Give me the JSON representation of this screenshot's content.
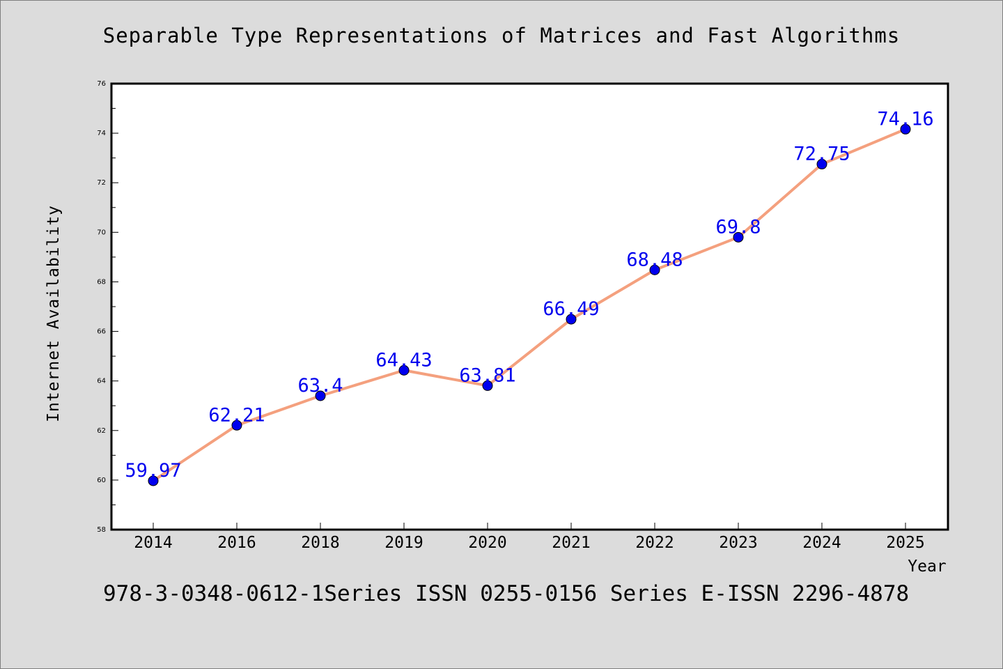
{
  "chart_data": {
    "type": "line",
    "title": "Separable Type Representations of Matrices and Fast Algorithms",
    "xlabel": "Year",
    "ylabel": "Internet Availability",
    "categories": [
      "2014",
      "2016",
      "2018",
      "2019",
      "2020",
      "2021",
      "2022",
      "2023",
      "2024",
      "2025"
    ],
    "series": [
      {
        "values": [
          59.97,
          62.21,
          63.4,
          64.43,
          63.81,
          66.49,
          68.48,
          69.8,
          72.75,
          74.16
        ],
        "data_labels": [
          "59.97",
          "62.21",
          "63.4",
          "64.43",
          "63.81",
          "66.49",
          "68.48",
          "69.8",
          "72.75",
          "74.16"
        ]
      }
    ],
    "ylim": [
      58,
      76
    ],
    "yticks": [
      "58",
      "60",
      "62",
      "64",
      "66",
      "68",
      "70",
      "72",
      "74",
      "76"
    ],
    "grid": false,
    "line_color": "#f4a07e",
    "marker_color": "#0000ee",
    "label_color": "#0000ee",
    "background": "#dcdcdc"
  },
  "footer": {
    "text": "978-3-0348-0612-1Series ISSN 0255-0156 Series E-ISSN 2296-4878"
  }
}
